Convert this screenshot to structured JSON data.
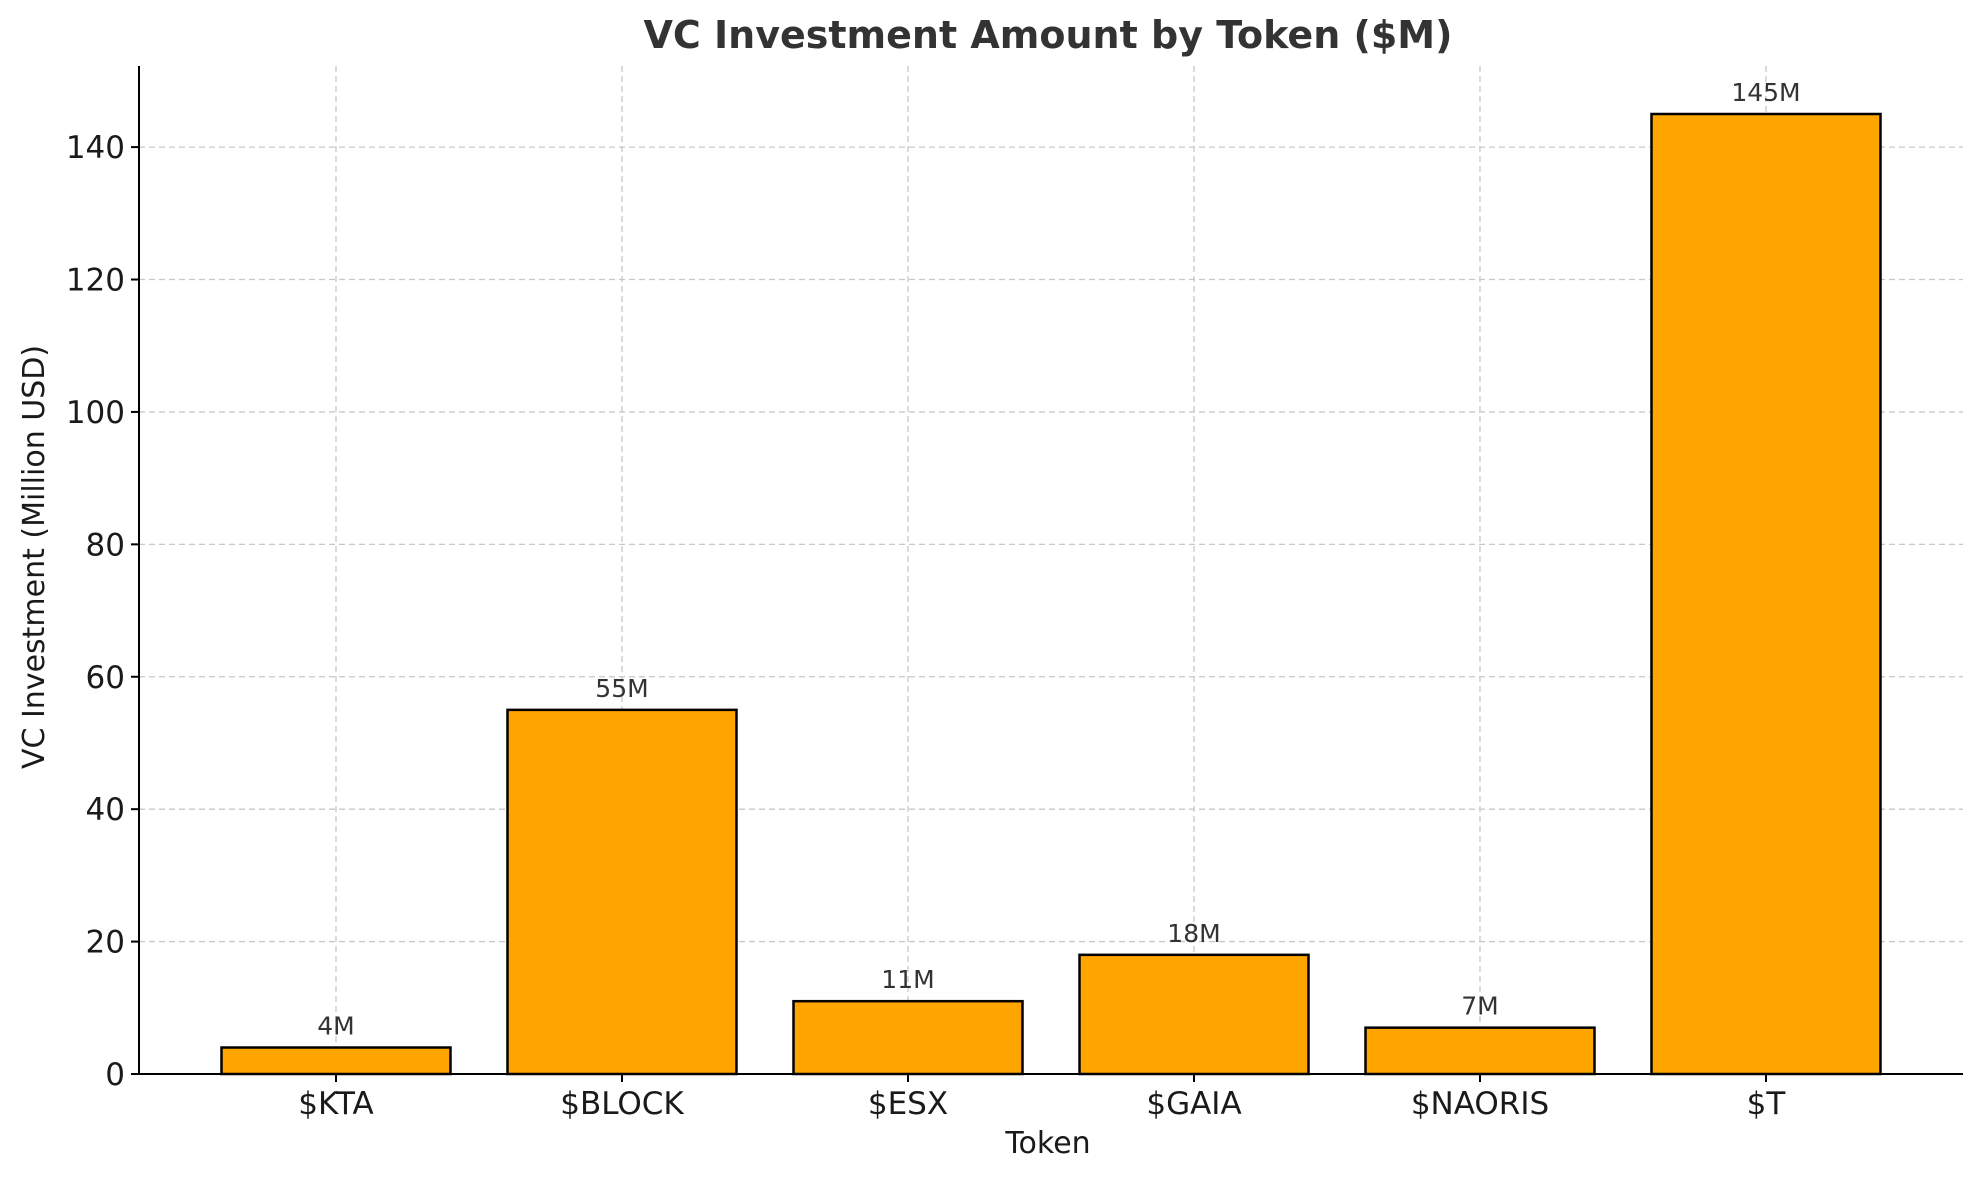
{
  "chart_data": {
    "type": "bar",
    "title": "VC Investment Amount by Token ($M)",
    "xlabel": "Token",
    "ylabel": "VC Investment (Million USD)",
    "categories": [
      "$KTA",
      "$BLOCK",
      "$ESX",
      "$GAIA",
      "$NAORIS",
      "$T"
    ],
    "values": [
      4,
      55,
      11,
      18,
      7,
      145
    ],
    "data_labels": [
      "4M",
      "55M",
      "11M",
      "18M",
      "7M",
      "145M"
    ],
    "ylim": [
      0,
      152.25
    ],
    "yticks": [
      0,
      20,
      40,
      60,
      80,
      100,
      120,
      140
    ],
    "grid": true,
    "bar_color": "#FFA500",
    "bar_edge_color": "#000000"
  }
}
